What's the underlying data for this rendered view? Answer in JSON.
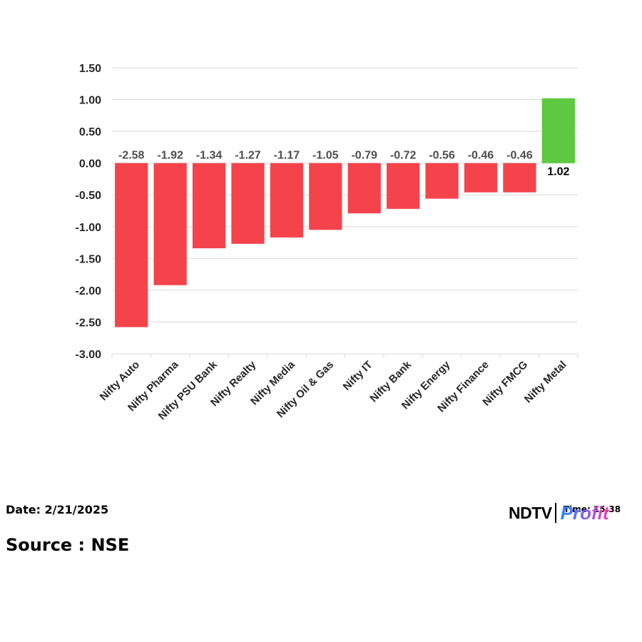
{
  "chart_data": {
    "type": "bar",
    "title": "",
    "xlabel": "",
    "ylabel": "",
    "categories": [
      "Nifty Auto",
      "Nifty Pharma",
      "Nifty PSU Bank",
      "Nifty Realty",
      "Nifty Media",
      "Nifty Oil & Gas",
      "Nifty IT",
      "Nifty Bank",
      "Nifty Energy",
      "Nifty Finance",
      "Nifty FMCG",
      "Nifty Metal"
    ],
    "values": [
      -2.58,
      -1.92,
      -1.34,
      -1.27,
      -1.17,
      -1.05,
      -0.79,
      -0.72,
      -0.56,
      -0.46,
      -0.46,
      1.02
    ],
    "value_labels": [
      "-2.58",
      "-1.92",
      "-1.34",
      "-1.27",
      "-1.17",
      "-1.05",
      "-0.79",
      "-0.72",
      "-0.56",
      "-0.46",
      "-0.46",
      "1.02"
    ],
    "ylim": [
      -3.0,
      1.5
    ],
    "yticks": [
      "1.50",
      "1.00",
      "0.50",
      "0.00",
      "-0.50",
      "-1.00",
      "-1.50",
      "-2.00",
      "-2.50",
      "-3.00"
    ],
    "ytick_values": [
      1.5,
      1.0,
      0.5,
      0.0,
      -0.5,
      -1.0,
      -1.5,
      -2.0,
      -2.5,
      -3.0
    ],
    "grid": true,
    "legend": "none",
    "colors": {
      "negative": "#f5434b",
      "positive": "#5ec940",
      "grid": "#d9d9d9"
    }
  },
  "footer": {
    "date": "Date: 2/21/2025",
    "time": "Time: 15:38",
    "source": "Source : NSE"
  },
  "logo": {
    "ndtv": "NDTV",
    "profit": "Profit"
  }
}
